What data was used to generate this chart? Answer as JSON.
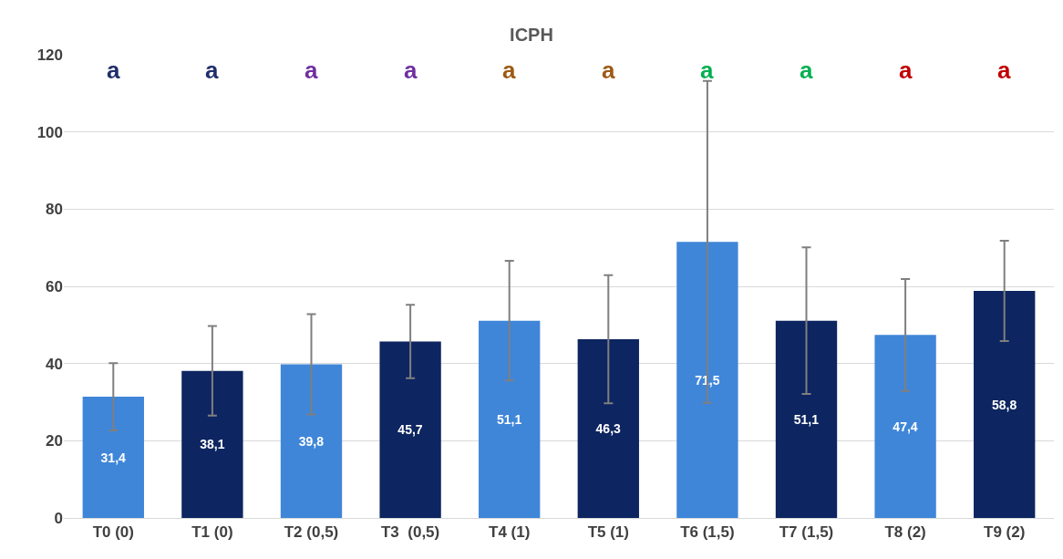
{
  "chart_data": {
    "type": "bar",
    "title": "ICPH",
    "categories": [
      "T0 (0)",
      "T1 (0)",
      "T2 (0,5)",
      "T3  (0,5)",
      "T4 (1)",
      "T5 (1)",
      "T6 (1,5)",
      "T7 (1,5)",
      "T8 (2)",
      "T9 (2)"
    ],
    "values": [
      31.4,
      38.1,
      39.8,
      45.7,
      51.1,
      46.3,
      71.5,
      51.1,
      47.4,
      58.8
    ],
    "value_labels": [
      "31,4",
      "38,1",
      "39,8",
      "45,7",
      "51,1",
      "46,3",
      "71,5",
      "51,1",
      "47,4",
      "58,8"
    ],
    "colors": [
      "#3f86d8",
      "#0d2560",
      "#3f86d8",
      "#0d2560",
      "#3f86d8",
      "#0d2560",
      "#3f86d8",
      "#0d2560",
      "#3f86d8",
      "#0d2560"
    ],
    "errors": [
      8.7,
      11.6,
      13,
      9.5,
      15.5,
      16.6,
      41.7,
      19,
      14.5,
      13
    ],
    "ylim": [
      0,
      120
    ],
    "yticks": [
      0,
      20,
      40,
      60,
      80,
      100,
      120
    ],
    "grid": "y",
    "annotations": [
      "a",
      "a",
      "a",
      "a",
      "a",
      "a",
      "a",
      "a",
      "a",
      "a"
    ]
  }
}
